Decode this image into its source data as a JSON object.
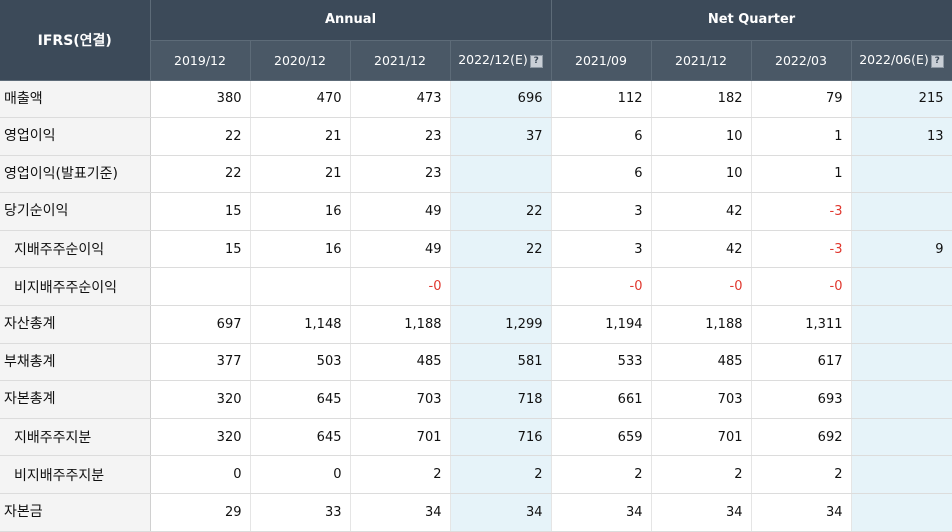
{
  "header": {
    "corner_label": "IFRS(연결)",
    "annual_label": "Annual",
    "quarter_label": "Net Quarter",
    "periods": [
      "2019/12",
      "2020/12",
      "2021/12",
      "2022/12(E)",
      "2021/09",
      "2021/12",
      "2022/03",
      "2022/06(E)"
    ]
  },
  "rows": [
    {
      "label": "매출액",
      "cells": [
        "380",
        "470",
        "473",
        "696",
        "112",
        "182",
        "79",
        "215"
      ]
    },
    {
      "label": "영업이익",
      "cells": [
        "22",
        "21",
        "23",
        "37",
        "6",
        "10",
        "1",
        "13"
      ]
    },
    {
      "label": "영업이익(발표기준)",
      "cells": [
        "22",
        "21",
        "23",
        "",
        "6",
        "10",
        "1",
        ""
      ]
    },
    {
      "label": "당기순이익",
      "cells": [
        "15",
        "16",
        "49",
        "22",
        "3",
        "42",
        "-3",
        ""
      ]
    },
    {
      "label": "지배주주순이익",
      "cells": [
        "15",
        "16",
        "49",
        "22",
        "3",
        "42",
        "-3",
        "9"
      ]
    },
    {
      "label": "비지배주주순이익",
      "cells": [
        "",
        "",
        "-0",
        "",
        "-0",
        "-0",
        "-0",
        ""
      ]
    },
    {
      "label": "자산총계",
      "cells": [
        "697",
        "1,148",
        "1,188",
        "1,299",
        "1,194",
        "1,188",
        "1,311",
        ""
      ]
    },
    {
      "label": "부채총계",
      "cells": [
        "377",
        "503",
        "485",
        "581",
        "533",
        "485",
        "617",
        ""
      ]
    },
    {
      "label": "자본총계",
      "cells": [
        "320",
        "645",
        "703",
        "718",
        "661",
        "703",
        "693",
        ""
      ]
    },
    {
      "label": "지배주주지분",
      "cells": [
        "320",
        "645",
        "701",
        "716",
        "659",
        "701",
        "692",
        ""
      ]
    },
    {
      "label": "비지배주주지분",
      "cells": [
        "0",
        "0",
        "2",
        "2",
        "2",
        "2",
        "2",
        ""
      ]
    },
    {
      "label": "자본금",
      "cells": [
        "29",
        "33",
        "34",
        "34",
        "34",
        "34",
        "34",
        ""
      ]
    }
  ],
  "colors": {
    "header_bg": "#3c4a59",
    "estimate_bg": "#e6f3f9",
    "negative": "#e0382f"
  }
}
